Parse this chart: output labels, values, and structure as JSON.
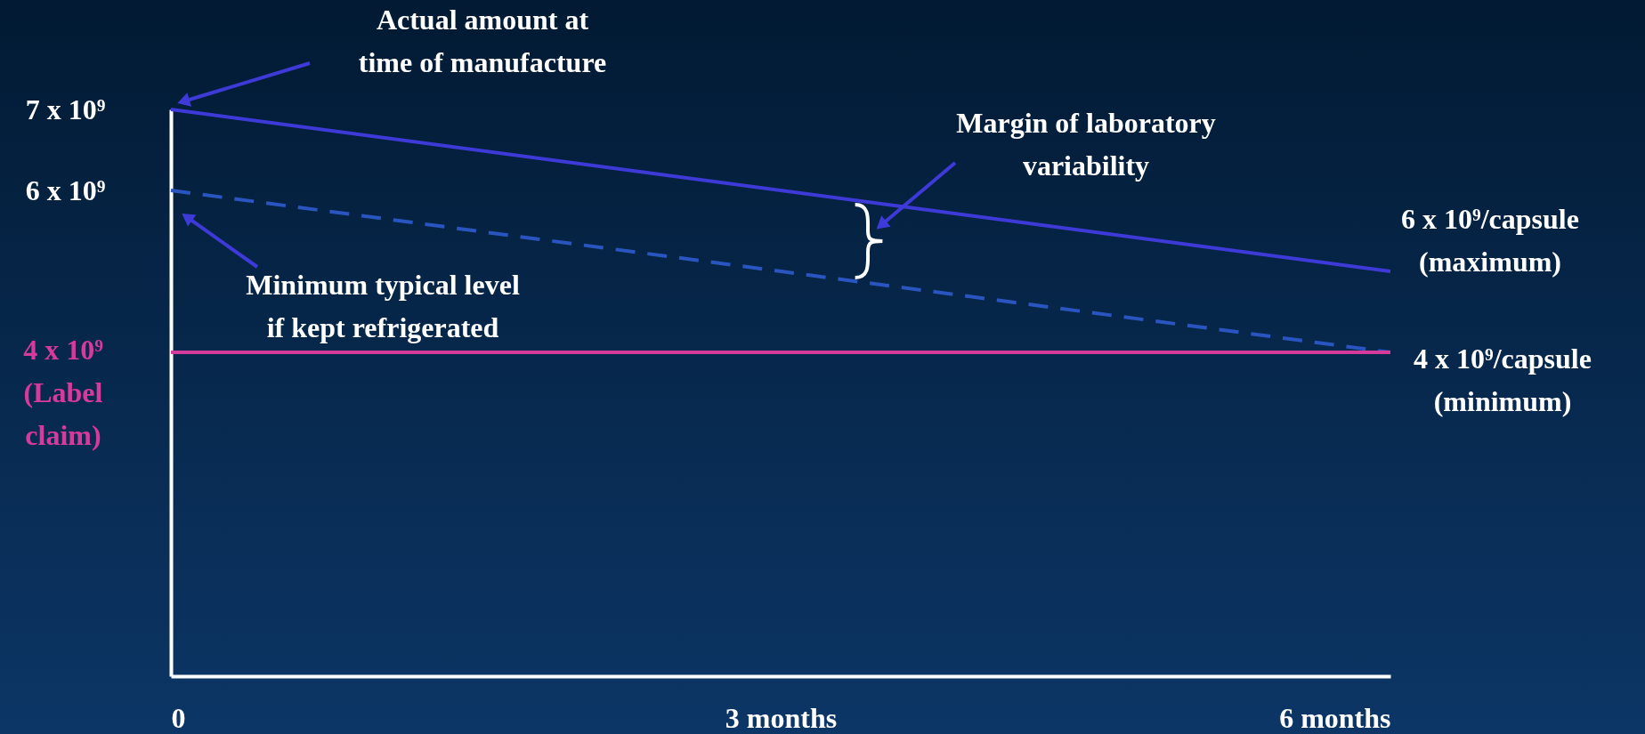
{
  "chart_data": {
    "type": "line",
    "x": [
      0,
      6
    ],
    "series": [
      {
        "color": "#3d3ad8",
        "values": [
          7000000000,
          5000000000
        ],
        "line_style": "solid"
      },
      {
        "color": "#2a55c0",
        "values": [
          6000000000,
          4000000000
        ],
        "line_style": "dashed"
      }
    ],
    "xlim": [
      0,
      6
    ],
    "xticks": [
      0,
      {
        "value": 3,
        "label": "3 months"
      },
      {
        "value": 6,
        "label": "6 months"
      }
    ],
    "ylim": [
      0,
      7000000000
    ],
    "yticks": [
      {
        "value": 7000000000,
        "label": "7 x 10⁹"
      },
      {
        "value": 6000000000,
        "label": "6 x 10⁹"
      }
    ],
    "ref_lines": [
      {
        "axis": "y",
        "value": 4000000000,
        "label": "4 x 10⁹ (Label claim)",
        "color": "#d63a9a"
      }
    ],
    "annotations": [
      "Actual amount at time of manufacture",
      "Margin of laboratory variability",
      "Minimum typical level if kept refrigerated",
      {
        "text": "6 x 10⁹/capsule (maximum)",
        "x": 6,
        "y": 5000000000
      },
      {
        "text": "4 x 10⁹/capsule (minimum)",
        "x": 6,
        "y": 4000000000
      }
    ],
    "grid": false,
    "marker": "none"
  }
}
